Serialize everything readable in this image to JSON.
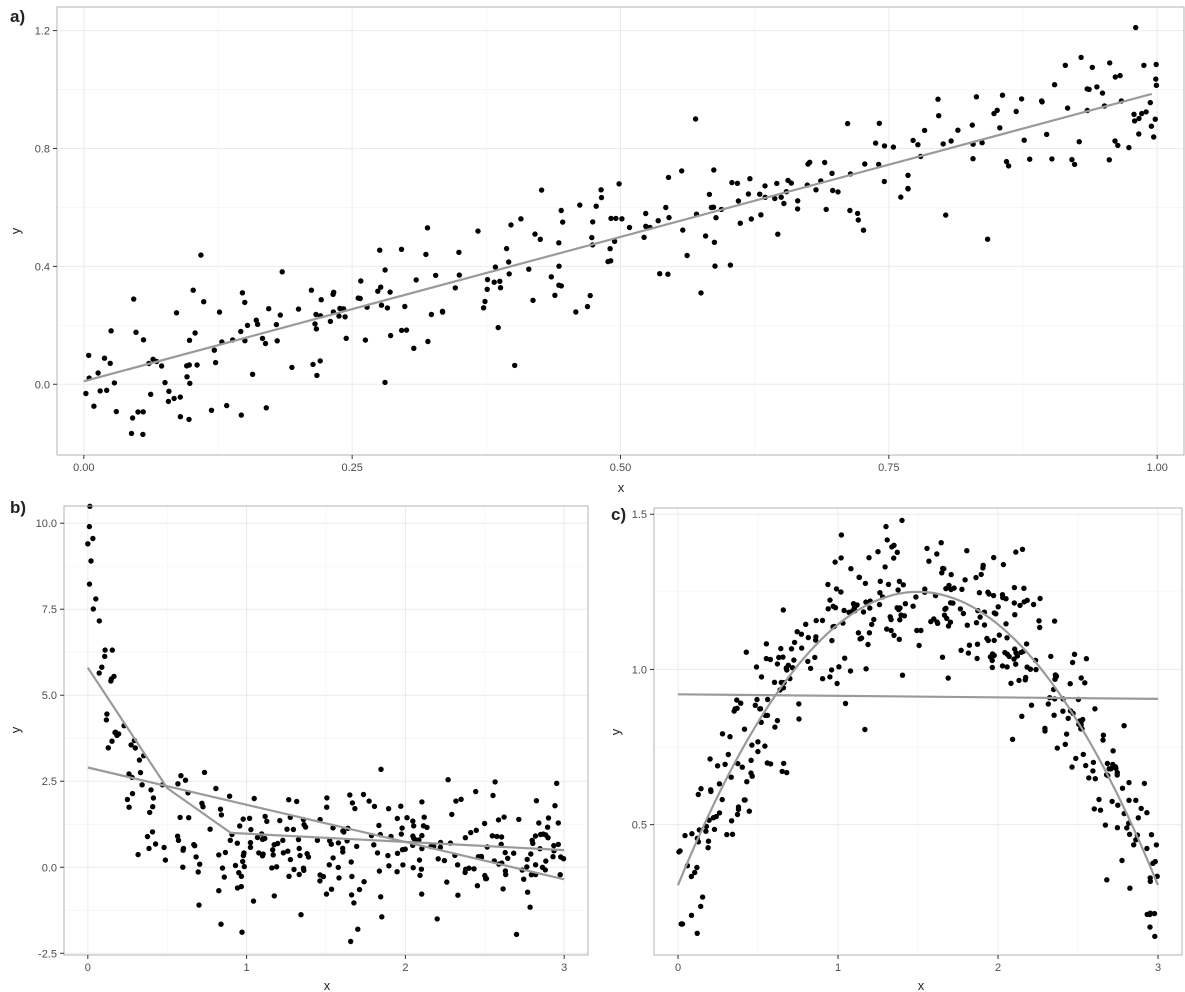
{
  "chart_data": [
    {
      "panel": "a)",
      "type": "scatter",
      "xlabel": "x",
      "ylabel": "y",
      "xlim": [
        -0.025,
        1.025
      ],
      "ylim": [
        -0.24,
        1.28
      ],
      "xticks": [
        0,
        0.25,
        0.5,
        0.75,
        1
      ],
      "xtick_labels": [
        "0.00",
        "0.25",
        "0.50",
        "0.75",
        "1.00"
      ],
      "yticks": [
        0,
        0.4,
        0.8,
        1.2
      ],
      "ytick_labels": [
        "0.0",
        "0.4",
        "0.8",
        "1.2"
      ],
      "points": {
        "model": "linear_noise",
        "n": 300,
        "x_range": [
          0,
          1
        ],
        "trend": {
          "intercept": 0.0,
          "slope": 1.0
        },
        "noise_sd": 0.1,
        "highlights": [
          [
            0.055,
            -0.17
          ],
          [
            0.57,
            0.9
          ],
          [
            0.98,
            1.21
          ],
          [
            0.17,
            -0.08
          ],
          [
            0.09,
            -0.11
          ],
          [
            0.575,
            0.31
          ]
        ]
      },
      "fits": [
        {
          "kind": "line",
          "x": [
            0.0,
            0.995
          ],
          "y": [
            0.01,
            0.985
          ]
        }
      ]
    },
    {
      "panel": "b)",
      "type": "scatter",
      "xlabel": "x",
      "ylabel": "y",
      "xlim": [
        -0.15,
        3.15
      ],
      "ylim": [
        -2.55,
        10.5
      ],
      "xticks": [
        0,
        1,
        2,
        3
      ],
      "xtick_labels": [
        "0",
        "1",
        "2",
        "3"
      ],
      "yticks": [
        -2.5,
        0,
        2.5,
        5,
        7.5,
        10
      ],
      "ytick_labels": [
        "-2.5",
        "0.0",
        "2.5",
        "5.0",
        "7.5",
        "10.0"
      ],
      "points": {
        "model": "exp_decay_noise",
        "n": 300,
        "x_range": [
          0,
          3
        ],
        "trend": {
          "a": 9.0,
          "k": 5.0,
          "c": 0.55
        },
        "noise_sd": 0.9,
        "highlights": [
          [
            0.01,
            9.9
          ],
          [
            0.0,
            9.4
          ],
          [
            0.02,
            8.9
          ],
          [
            0.7,
            -1.1
          ],
          [
            1.7,
            -1.8
          ],
          [
            2.7,
            -1.95
          ],
          [
            2.2,
            -1.5
          ],
          [
            0.05,
            7.8
          ]
        ]
      },
      "fits": [
        {
          "kind": "line",
          "x": [
            0.0,
            3.0
          ],
          "y": [
            2.9,
            -0.35
          ]
        },
        {
          "kind": "piecewise",
          "x": [
            0.0,
            0.5,
            0.9,
            3.0
          ],
          "y": [
            5.8,
            2.3,
            1.0,
            0.5
          ]
        }
      ]
    },
    {
      "panel": "c)",
      "type": "scatter",
      "xlabel": "x",
      "ylabel": "y",
      "xlim": [
        -0.15,
        3.15
      ],
      "ylim": [
        0.08,
        1.52
      ],
      "xticks": [
        0,
        1,
        2,
        3
      ],
      "xtick_labels": [
        "0",
        "1",
        "2",
        "3"
      ],
      "yticks": [
        0.5,
        1.0,
        1.5
      ],
      "ytick_labels": [
        "0.5",
        "1.0",
        "1.5"
      ],
      "points": {
        "model": "quadratic_noise",
        "n": 400,
        "x_range": [
          0,
          3
        ],
        "trend": {
          "vertex_x": 1.5,
          "vertex_y": 1.25,
          "curvature": -0.42
        },
        "noise_sd": 0.12,
        "highlights": [
          [
            0.02,
            0.18
          ],
          [
            0.12,
            0.15
          ],
          [
            2.98,
            0.14
          ],
          [
            1.4,
            1.48
          ],
          [
            1.3,
            1.46
          ],
          [
            2.95,
            0.17
          ]
        ]
      },
      "fits": [
        {
          "kind": "line",
          "x": [
            0.0,
            3.0
          ],
          "y": [
            0.92,
            0.905
          ]
        },
        {
          "kind": "quadratic",
          "vertex_x": 1.5,
          "vertex_y": 1.25,
          "curvature": -0.42,
          "x_range": [
            0.0,
            3.0
          ]
        }
      ]
    }
  ]
}
